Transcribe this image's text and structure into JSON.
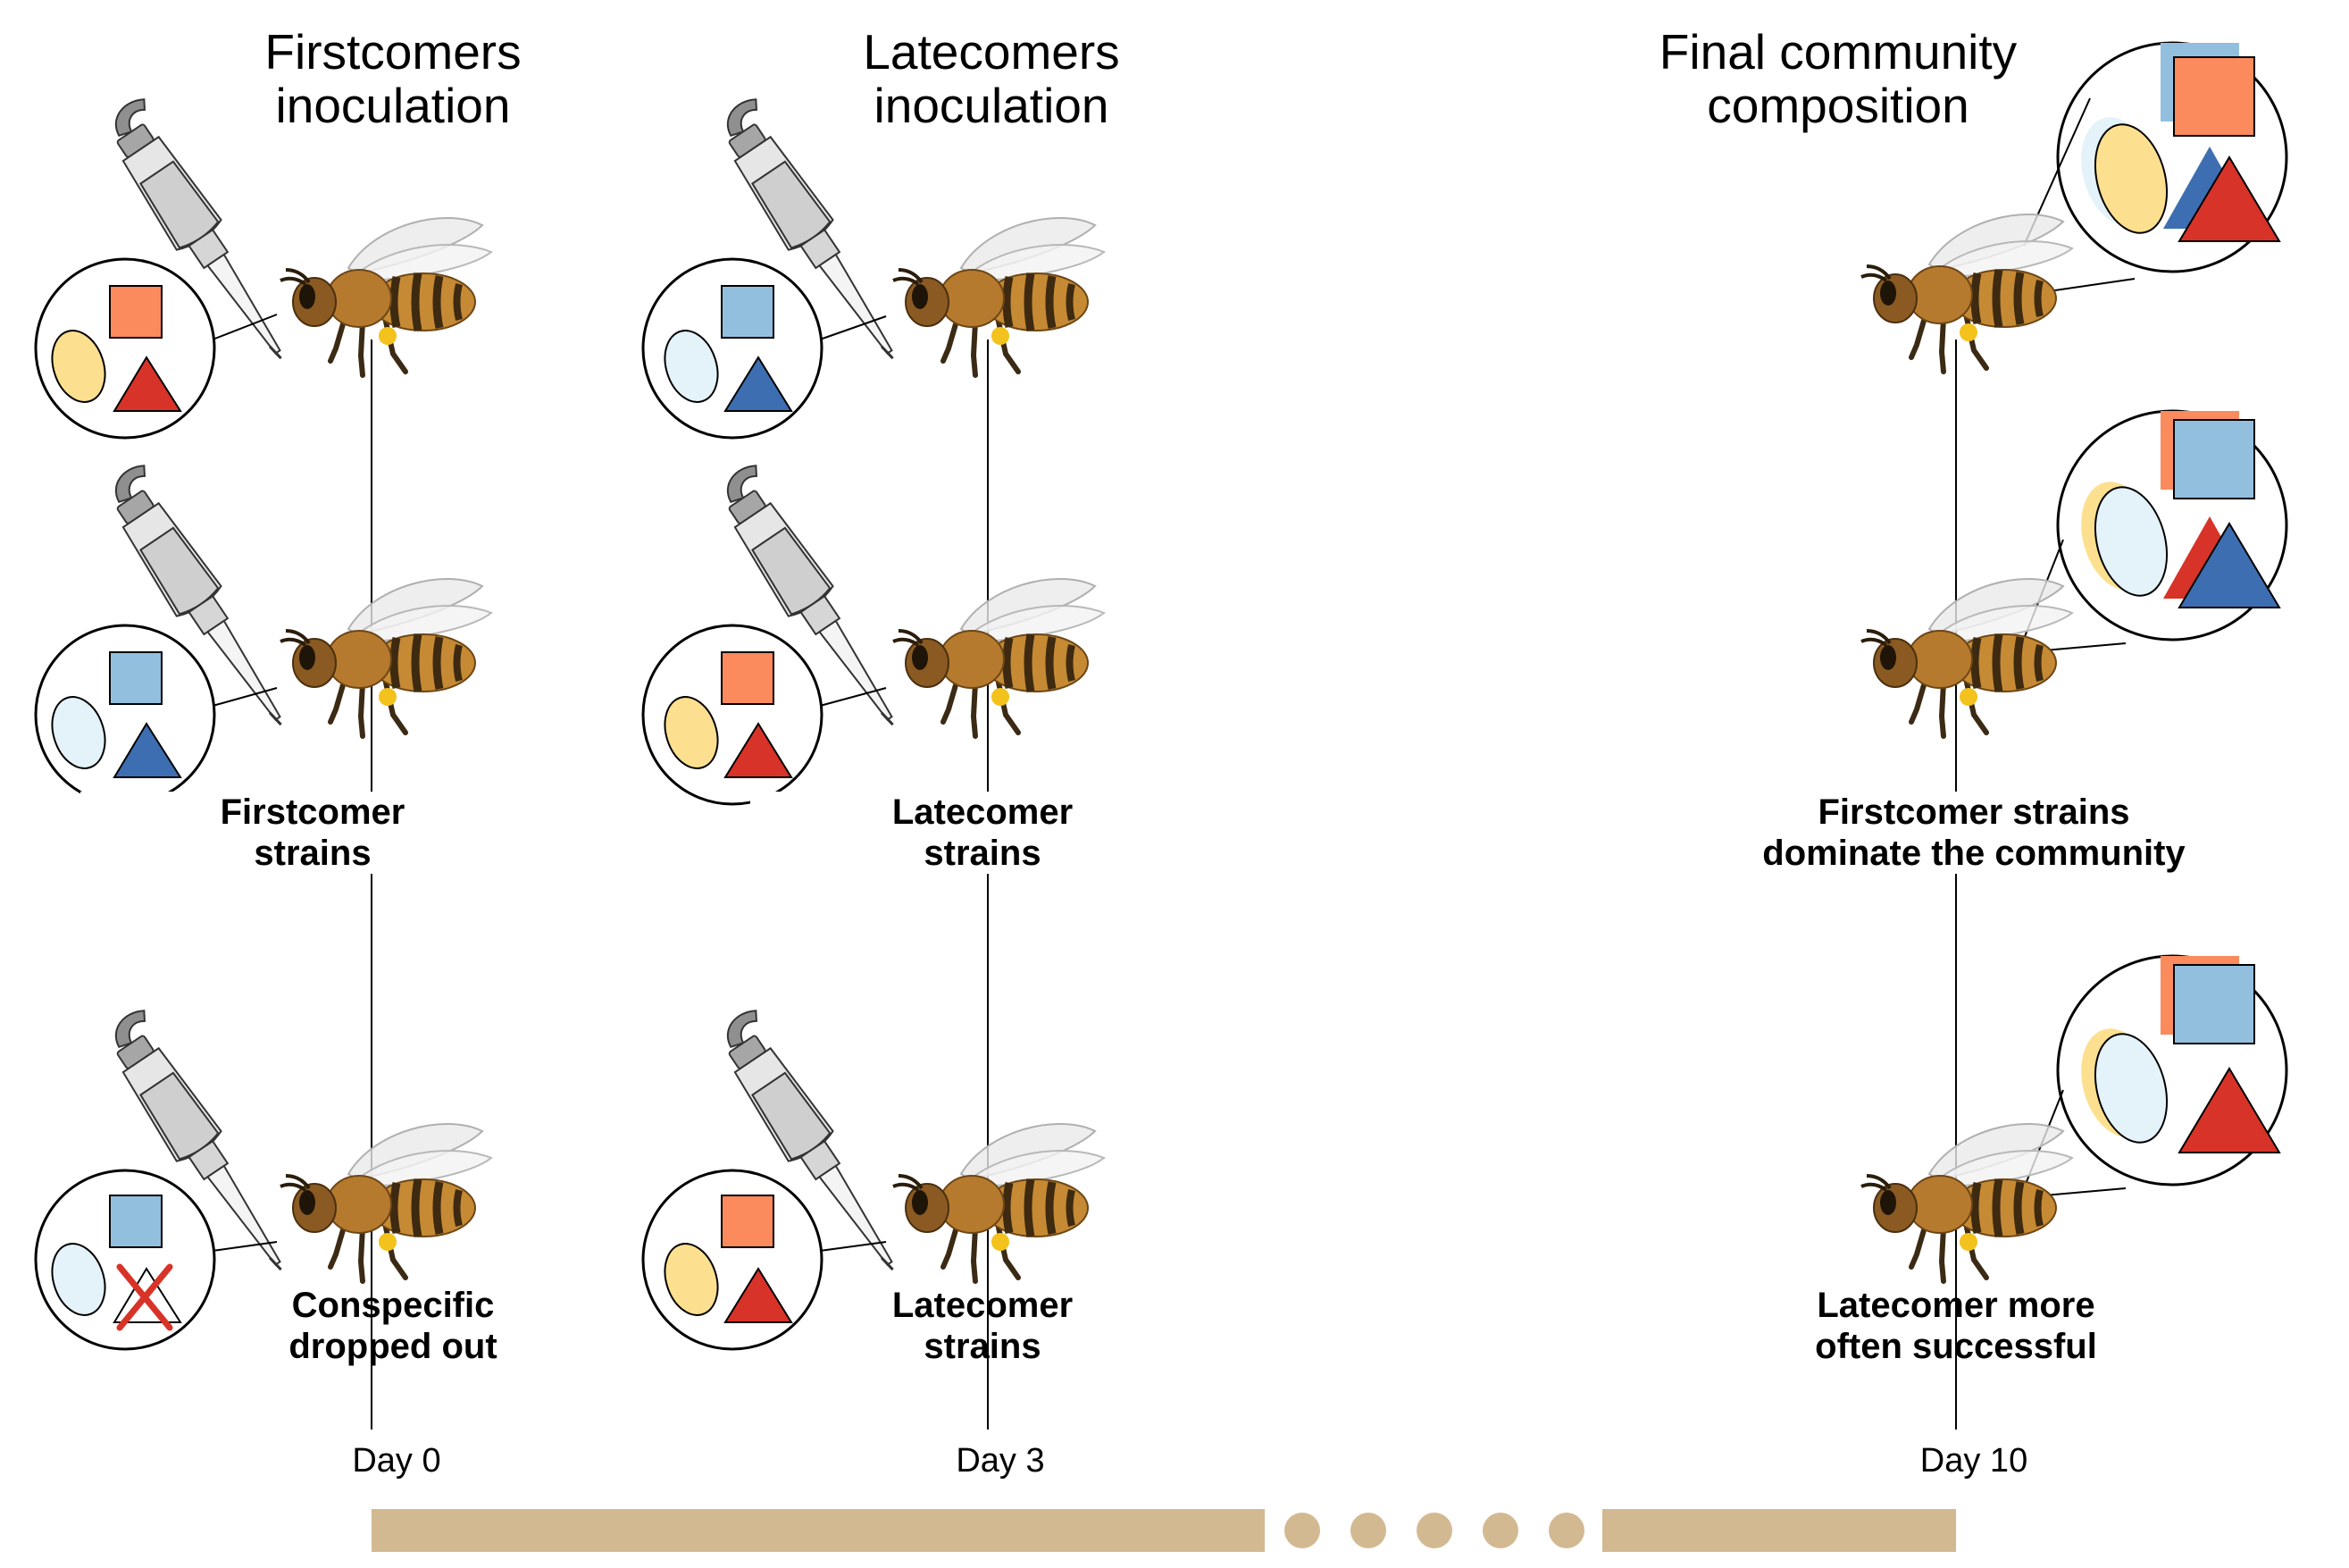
{
  "headers": {
    "firstcomers": "Firstcomers\ninoculation",
    "latecomers": "Latecomers\ninoculation",
    "final": "Final community\ncomposition"
  },
  "labels": {
    "firstcomer_strains": "Firstcomer\nstrains",
    "latecomer_strains_1": "Latecomer\nstrains",
    "conspecific_dropped": "Conspecific\ndropped out",
    "latecomer_strains_2": "Latecomer\nstrains",
    "firstcomer_dominate": "Firstcomer strains\ndominate the community",
    "latecomer_successful": "Latecomer more\noften successful"
  },
  "timeline": {
    "day0": "Day 0",
    "day3": "Day 3",
    "day10": "Day 10"
  },
  "colors": {
    "yellow_oval": "#fde08f",
    "light_blue_oval": "#e4f2f9",
    "orange_square": "#fb8a5c",
    "blue_square": "#93bfdf",
    "red_triangle": "#d83328",
    "blue_triangle": "#3d6eb1",
    "timeline_bar": "#d3b991"
  }
}
